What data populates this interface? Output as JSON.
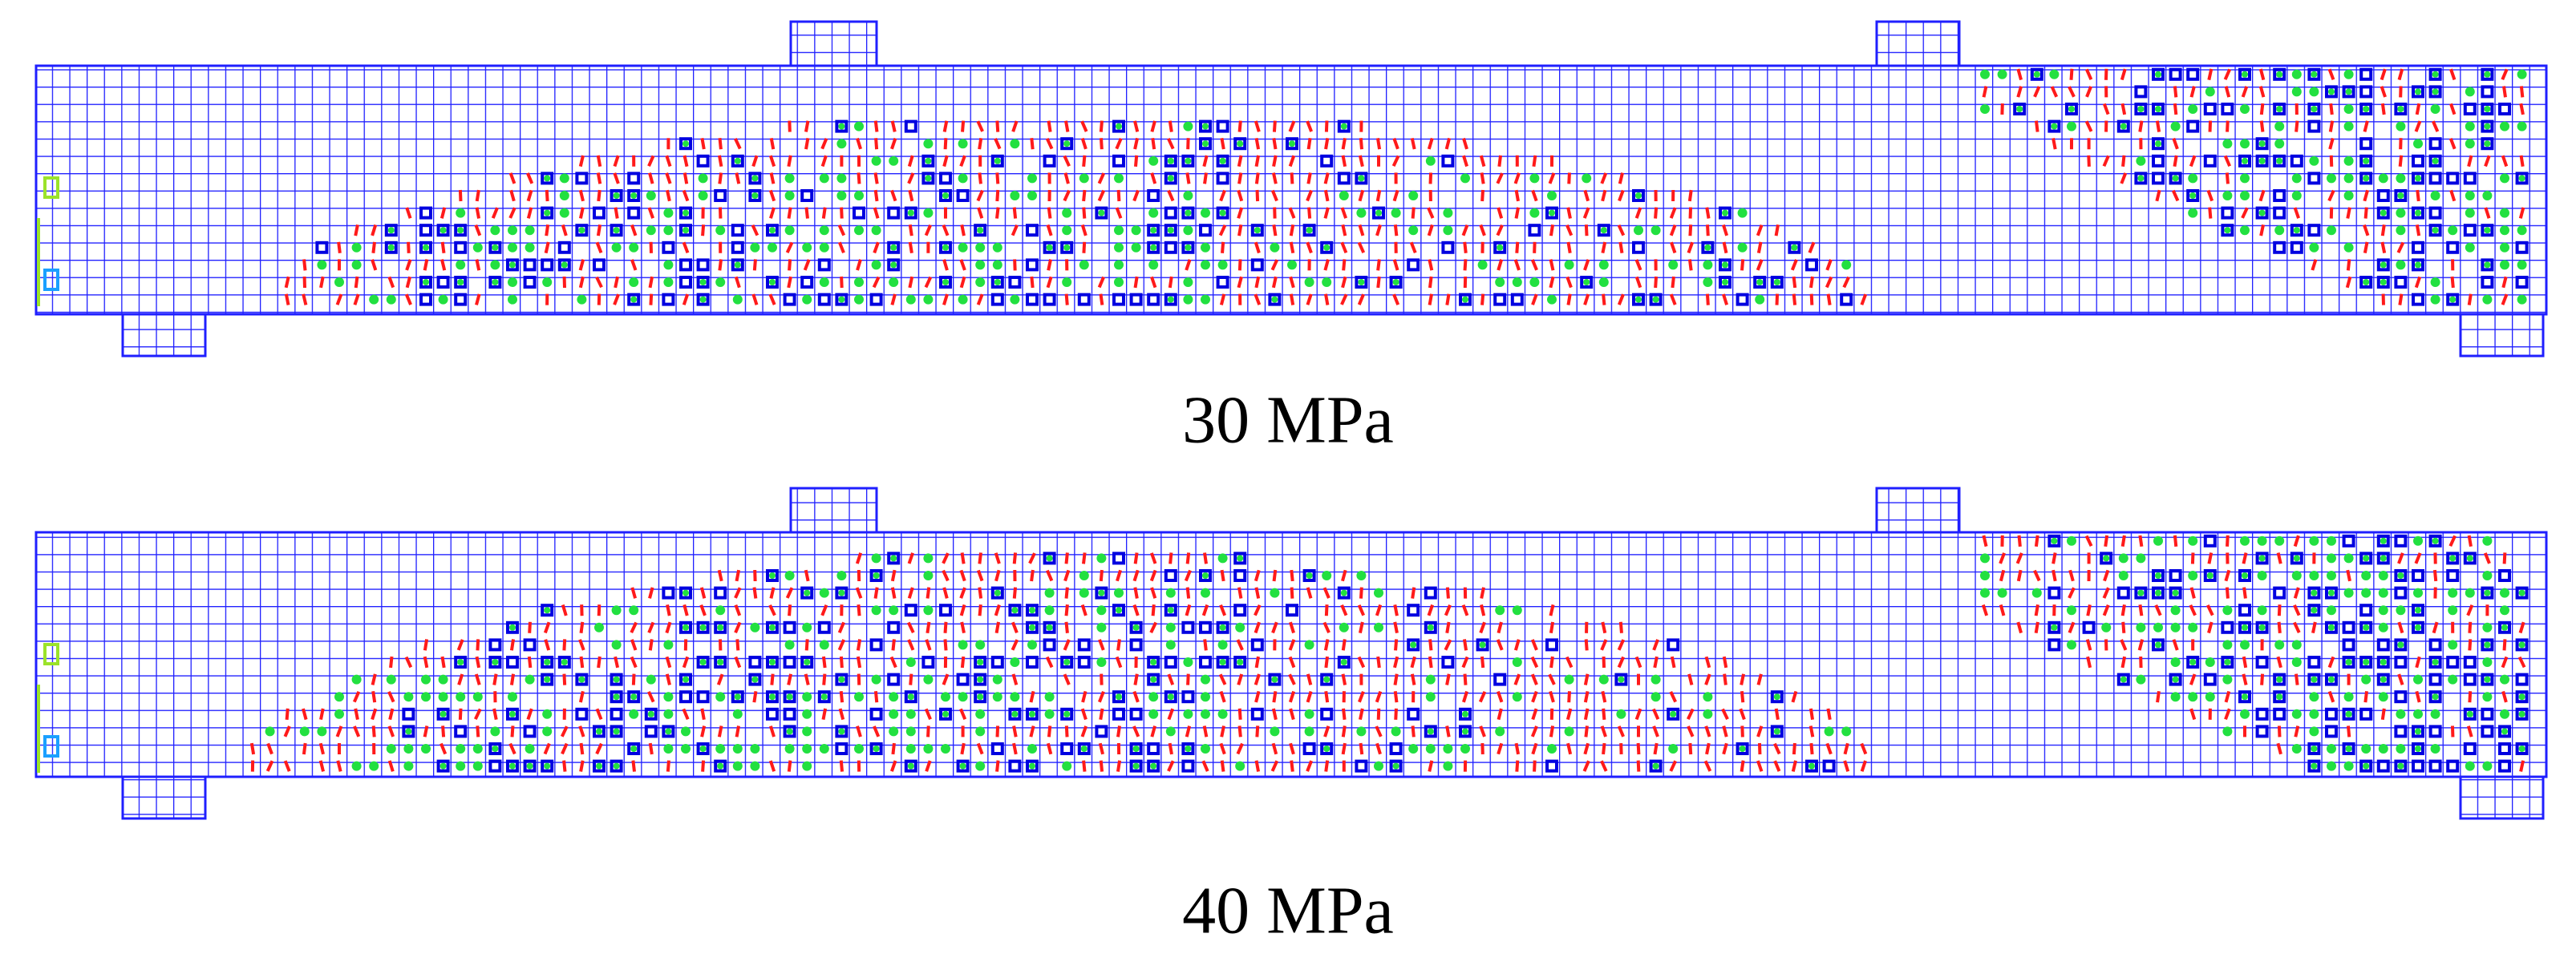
{
  "panels": [
    {
      "caption": "30 MPa"
    },
    {
      "caption": "40 MPa"
    }
  ]
}
